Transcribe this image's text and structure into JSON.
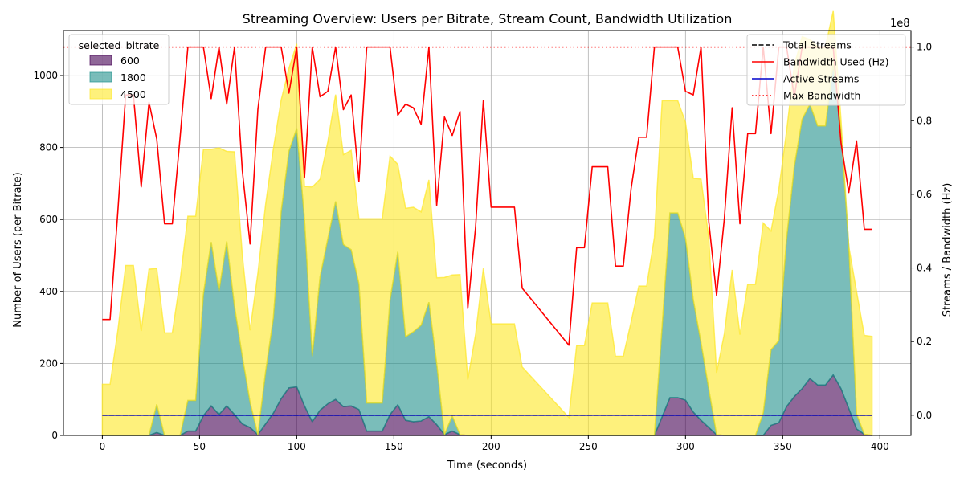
{
  "chart_data": {
    "type": "area",
    "title": "Streaming Overview: Users per Bitrate, Stream Count, Bandwidth Utilization",
    "xlabel": "Time (seconds)",
    "ylabel": "Number of Users (per Bitrate)",
    "y2label": "Streams / Bandwidth (Hz)",
    "y2_offset_text": "1e8",
    "xlim": [
      -20,
      416
    ],
    "ylim": [
      0,
      1125
    ],
    "y2lim": [
      -0.055,
      1.045
    ],
    "x_ticks": [
      0,
      50,
      100,
      150,
      200,
      250,
      300,
      350,
      400
    ],
    "y_ticks": [
      0,
      200,
      400,
      600,
      800,
      1000
    ],
    "y2_ticks": [
      0.0,
      0.2,
      0.4,
      0.6,
      0.8,
      1.0
    ],
    "grid": true,
    "stack_legend": {
      "title": "selected_bitrate",
      "placement": "top-left",
      "entries": [
        "600",
        "1800",
        "4500"
      ]
    },
    "line_legend": {
      "placement": "top-right",
      "entries": [
        "Total Streams",
        "Bandwidth Used (Hz)",
        "Active Streams",
        "Max Bandwidth"
      ]
    },
    "colors": {
      "600": "#440154",
      "1800": "#21918c",
      "4500": "#fde725",
      "total": "#000000",
      "bandwidth": "#ff0000",
      "active": "#0000cc",
      "max": "#ff0000"
    },
    "x": [
      0,
      4,
      8,
      12,
      16,
      20,
      24,
      28,
      32,
      36,
      40,
      44,
      48,
      52,
      56,
      60,
      64,
      68,
      72,
      76,
      80,
      84,
      88,
      92,
      96,
      100,
      104,
      108,
      112,
      116,
      120,
      124,
      128,
      132,
      136,
      140,
      144,
      148,
      152,
      156,
      160,
      164,
      168,
      172,
      176,
      180,
      184,
      188,
      192,
      196,
      200,
      204,
      208,
      212,
      216,
      240,
      244,
      248,
      252,
      256,
      260,
      264,
      268,
      272,
      276,
      280,
      284,
      288,
      292,
      296,
      300,
      304,
      308,
      312,
      316,
      320,
      324,
      328,
      332,
      336,
      340,
      344,
      348,
      352,
      356,
      360,
      364,
      368,
      372,
      376,
      380,
      384,
      388,
      392,
      396
    ],
    "series": [
      {
        "name": "600",
        "values": [
          0,
          0,
          0,
          0,
          0,
          0,
          0,
          8,
          0,
          0,
          0,
          12,
          12,
          55,
          82,
          58,
          82,
          58,
          32,
          22,
          2,
          32,
          62,
          102,
          132,
          135,
          82,
          38,
          70,
          88,
          100,
          80,
          82,
          72,
          12,
          12,
          12,
          58,
          85,
          42,
          38,
          40,
          52,
          30,
          2,
          12,
          2,
          0,
          0,
          0,
          0,
          0,
          0,
          0,
          0,
          0,
          0,
          0,
          0,
          0,
          0,
          0,
          0,
          0,
          0,
          0,
          0,
          52,
          105,
          105,
          98,
          65,
          42,
          22,
          2,
          0,
          0,
          0,
          0,
          0,
          0,
          28,
          35,
          80,
          108,
          130,
          158,
          140,
          140,
          168,
          130,
          75,
          18,
          3,
          0
        ]
      },
      {
        "name": "1800",
        "values": [
          0,
          0,
          0,
          0,
          0,
          0,
          0,
          78,
          0,
          0,
          0,
          85,
          85,
          338,
          455,
          343,
          457,
          300,
          188,
          70,
          0,
          145,
          265,
          520,
          658,
          718,
          518,
          182,
          370,
          458,
          550,
          450,
          434,
          350,
          78,
          78,
          78,
          318,
          425,
          232,
          250,
          266,
          318,
          170,
          0,
          42,
          0,
          0,
          0,
          0,
          0,
          0,
          0,
          0,
          0,
          0,
          0,
          0,
          0,
          0,
          0,
          0,
          0,
          0,
          0,
          0,
          0,
          252,
          513,
          513,
          450,
          312,
          215,
          106,
          0,
          0,
          0,
          0,
          0,
          0,
          62,
          210,
          228,
          465,
          640,
          748,
          762,
          720,
          720,
          863,
          718,
          450,
          42,
          0,
          0
        ]
      },
      {
        "name": "4500",
        "values": [
          142,
          142,
          292,
          472,
          472,
          290,
          462,
          378,
          285,
          285,
          430,
          512,
          512,
          402,
          258,
          398,
          250,
          430,
          282,
          200,
          448,
          465,
          470,
          310,
          230,
          235,
          92,
          470,
          272,
          270,
          297,
          250,
          276,
          180,
          512,
          512,
          512,
          400,
          243,
          357,
          346,
          315,
          340,
          238,
          437,
          392,
          445,
          155,
          280,
          464,
          310,
          310,
          310,
          310,
          190,
          50,
          250,
          250,
          368,
          368,
          368,
          220,
          220,
          315,
          415,
          415,
          550,
          626,
          312,
          312,
          322,
          338,
          455,
          420,
          172,
          283,
          460,
          280,
          420,
          420,
          528,
          330,
          420,
          300,
          280,
          230,
          180,
          220,
          220,
          148,
          30,
          0,
          340,
          275,
          275
        ]
      },
      {
        "name": "Bandwidth Used (Hz)",
        "axis": "y2",
        "values": [
          0.26,
          0.26,
          0.555,
          0.87,
          0.87,
          0.62,
          0.85,
          0.75,
          0.52,
          0.52,
          0.755,
          1.0,
          1.0,
          1.0,
          0.86,
          1.0,
          0.845,
          1.0,
          0.665,
          0.465,
          0.83,
          1.0,
          1.0,
          1.0,
          0.875,
          1.0,
          0.645,
          1.0,
          0.865,
          0.88,
          1.0,
          0.83,
          0.87,
          0.635,
          1.0,
          1.0,
          1.0,
          1.0,
          0.815,
          0.845,
          0.835,
          0.79,
          1.0,
          0.57,
          0.81,
          0.76,
          0.825,
          0.29,
          0.51,
          0.855,
          0.565,
          0.565,
          0.565,
          0.565,
          0.345,
          0.19,
          0.455,
          0.455,
          0.675,
          0.675,
          0.675,
          0.405,
          0.405,
          0.615,
          0.755,
          0.755,
          1.0,
          1.0,
          1.0,
          1.0,
          0.88,
          0.87,
          1.0,
          0.525,
          0.325,
          0.535,
          0.835,
          0.52,
          0.765,
          0.765,
          1.0,
          0.765,
          1.0,
          1.0,
          0.865,
          1.0,
          1.0,
          1.0,
          1.0,
          1.0,
          0.74,
          0.605,
          0.745,
          0.505,
          0.505
        ]
      },
      {
        "name": "Total Streams",
        "axis": "y2",
        "values_constant": 0.0
      },
      {
        "name": "Active Streams",
        "axis": "y2",
        "values_constant": 0.0
      },
      {
        "name": "Max Bandwidth",
        "axis": "y2",
        "values_constant": 1.0
      }
    ]
  }
}
